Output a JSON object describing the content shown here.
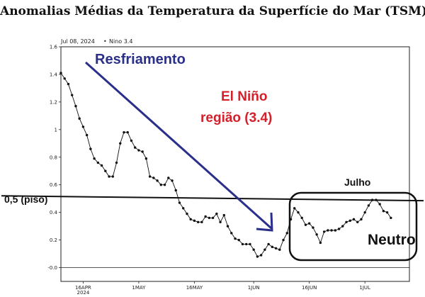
{
  "page_title": "Anomalias Médias da Temperatura da Superfície do Mar (TSM)",
  "header_date": "Jul 08, 2024",
  "header_bullet": "•",
  "header_region": "Nino 3.4",
  "annotations": {
    "cooling": "Resfriamento",
    "elnino_line1": "El Niño",
    "elnino_line2": "região (3.4)",
    "july": "Julho",
    "floor": "0,5 (piso)",
    "neutral": "Neutro"
  },
  "colors": {
    "cooling": "#2a2f8a",
    "elnino": "#d4202a",
    "series": "#111111"
  },
  "chart_data": {
    "type": "line",
    "title": "",
    "xlabel": "",
    "ylabel": "",
    "ylim": [
      -0.1,
      1.6
    ],
    "yticks": [
      "-0.0",
      "0.2",
      "0.4",
      "0.6",
      "0.8",
      "1",
      "1.2",
      "1.4",
      "1.6"
    ],
    "yticks_values": [
      0,
      0.2,
      0.4,
      0.6,
      0.8,
      1.0,
      1.2,
      1.4,
      1.6
    ],
    "xlim": [
      0,
      94
    ],
    "xticks": [
      {
        "day": 6,
        "label": "16APR",
        "sublabel": "2024"
      },
      {
        "day": 21,
        "label": "1MAY",
        "sublabel": ""
      },
      {
        "day": 36,
        "label": "16MAY",
        "sublabel": ""
      },
      {
        "day": 52,
        "label": "1JUN",
        "sublabel": ""
      },
      {
        "day": 67,
        "label": "16JUN",
        "sublabel": ""
      },
      {
        "day": 82,
        "label": "1JUL",
        "sublabel": ""
      }
    ],
    "reference_line": {
      "label": "0,5 (piso)",
      "y_start": 0.52,
      "y_end": 0.485
    },
    "series": [
      {
        "values": [
          [
            0,
            1.41
          ],
          [
            1,
            1.37
          ],
          [
            2,
            1.33
          ],
          [
            3,
            1.25
          ],
          [
            4,
            1.17
          ],
          [
            5,
            1.08
          ],
          [
            6,
            1.02
          ],
          [
            7,
            0.96
          ],
          [
            8,
            0.86
          ],
          [
            9,
            0.79
          ],
          [
            10,
            0.76
          ],
          [
            11,
            0.74
          ],
          [
            12,
            0.7
          ],
          [
            13,
            0.66
          ],
          [
            14,
            0.66
          ],
          [
            15,
            0.76
          ],
          [
            16,
            0.9
          ],
          [
            17,
            0.98
          ],
          [
            18,
            0.98
          ],
          [
            19,
            0.92
          ],
          [
            20,
            0.87
          ],
          [
            21,
            0.85
          ],
          [
            22,
            0.84
          ],
          [
            23,
            0.79
          ],
          [
            24,
            0.66
          ],
          [
            25,
            0.65
          ],
          [
            26,
            0.63
          ],
          [
            27,
            0.6
          ],
          [
            28,
            0.6
          ],
          [
            29,
            0.65
          ],
          [
            30,
            0.63
          ],
          [
            31,
            0.56
          ],
          [
            32,
            0.47
          ],
          [
            33,
            0.43
          ],
          [
            34,
            0.39
          ],
          [
            35,
            0.35
          ],
          [
            36,
            0.34
          ],
          [
            37,
            0.33
          ],
          [
            38,
            0.33
          ],
          [
            39,
            0.37
          ],
          [
            40,
            0.36
          ],
          [
            41,
            0.36
          ],
          [
            42,
            0.39
          ],
          [
            43,
            0.33
          ],
          [
            44,
            0.38
          ],
          [
            45,
            0.3
          ],
          [
            46,
            0.25
          ],
          [
            47,
            0.21
          ],
          [
            48,
            0.2
          ],
          [
            49,
            0.17
          ],
          [
            50,
            0.17
          ],
          [
            51,
            0.17
          ],
          [
            52,
            0.13
          ],
          [
            53,
            0.08
          ],
          [
            54,
            0.09
          ],
          [
            55,
            0.13
          ],
          [
            56,
            0.17
          ],
          [
            57,
            0.15
          ],
          [
            58,
            0.14
          ],
          [
            59,
            0.13
          ],
          [
            60,
            0.2
          ],
          [
            61,
            0.25
          ],
          [
            62,
            0.35
          ],
          [
            63,
            0.43
          ],
          [
            64,
            0.4
          ],
          [
            65,
            0.36
          ],
          [
            66,
            0.31
          ],
          [
            67,
            0.32
          ],
          [
            68,
            0.29
          ],
          [
            69,
            0.24
          ],
          [
            70,
            0.18
          ],
          [
            71,
            0.26
          ],
          [
            72,
            0.27
          ],
          [
            73,
            0.27
          ],
          [
            74,
            0.27
          ],
          [
            75,
            0.28
          ],
          [
            76,
            0.3
          ],
          [
            77,
            0.33
          ],
          [
            78,
            0.34
          ],
          [
            79,
            0.35
          ],
          [
            80,
            0.33
          ],
          [
            81,
            0.35
          ],
          [
            82,
            0.4
          ],
          [
            83,
            0.45
          ],
          [
            84,
            0.49
          ],
          [
            85,
            0.49
          ],
          [
            86,
            0.46
          ],
          [
            87,
            0.41
          ],
          [
            88,
            0.4
          ],
          [
            89,
            0.36
          ]
        ]
      }
    ]
  }
}
